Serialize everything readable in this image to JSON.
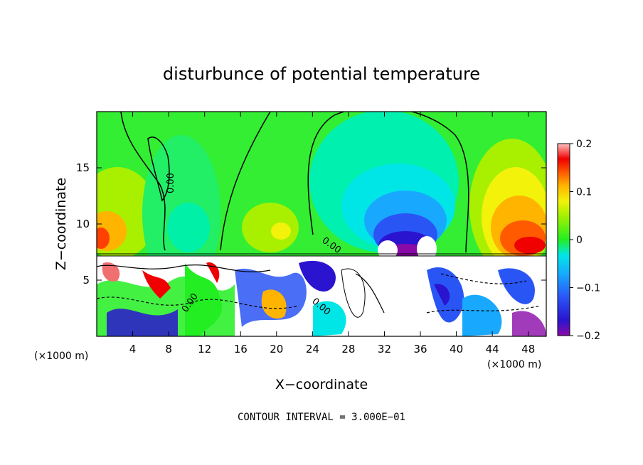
{
  "chart_data": {
    "type": "heatmap",
    "title": "disturbunce of potential temperature",
    "xlabel": "X−coordinate",
    "ylabel": "Z−coordinate",
    "x_unit": "(×1000 m)",
    "z_unit": "(×1000 m)",
    "xlim": [
      0,
      50
    ],
    "ylim": [
      0,
      20
    ],
    "x_ticks": [
      4,
      8,
      12,
      16,
      20,
      24,
      28,
      32,
      36,
      40,
      44,
      48
    ],
    "y_ticks": [
      5,
      10,
      15
    ],
    "colorbar": {
      "min": -0.2,
      "max": 0.2,
      "ticks": [
        "0.2",
        "0.1",
        "0",
        "−0.1",
        "−0.2"
      ],
      "tick_values": [
        0.2,
        0.1,
        0,
        -0.1,
        -0.2
      ],
      "colors": [
        "#8a0aa8",
        "#2a14d0",
        "#2a55f5",
        "#18a9ff",
        "#00e6e6",
        "#00f5a0",
        "#22ee22",
        "#a0f000",
        "#f2f20a",
        "#ffb400",
        "#ff5a00",
        "#f00000",
        "#f07070",
        "#ffc0c0"
      ]
    },
    "contour_labels": [
      "0.00",
      "0.00",
      "0.00",
      "0.00"
    ],
    "contour_interval_text": "CONTOUR INTERVAL = 3.000E−01"
  }
}
